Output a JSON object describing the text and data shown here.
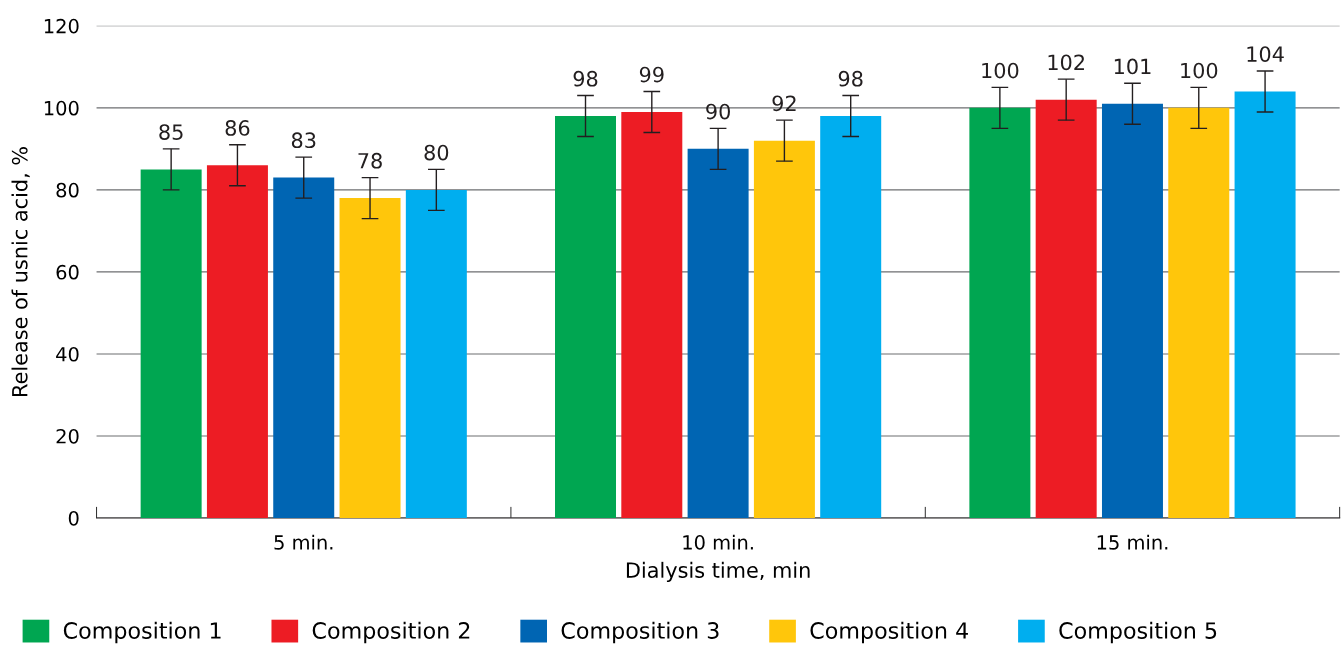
{
  "chart_data": {
    "type": "bar",
    "xlabel": "Dialysis time, min",
    "ylabel": "Release of usnic acid, %",
    "categories": [
      "5 min.",
      "10 min.",
      "15 min."
    ],
    "series": [
      {
        "name": "Composition 1",
        "color": "#00a651",
        "values": [
          85,
          98,
          100
        ],
        "errors": [
          5,
          5,
          5
        ]
      },
      {
        "name": "Composition 2",
        "color": "#ed1c24",
        "values": [
          86,
          99,
          102
        ],
        "errors": [
          5,
          5,
          5
        ]
      },
      {
        "name": "Composition 3",
        "color": "#0065b3",
        "values": [
          83,
          90,
          101
        ],
        "errors": [
          5,
          5,
          5
        ]
      },
      {
        "name": "Composition 4",
        "color": "#ffc60b",
        "values": [
          78,
          92,
          100
        ],
        "errors": [
          5,
          5,
          5
        ]
      },
      {
        "name": "Composition 5",
        "color": "#00aeef",
        "values": [
          80,
          98,
          104
        ],
        "errors": [
          5,
          5,
          5
        ]
      }
    ],
    "ylim": [
      0,
      120
    ],
    "yticks": [
      0,
      20,
      40,
      60,
      80,
      100,
      120
    ],
    "grid": "y",
    "legend": "bottom",
    "data_labels": true
  }
}
